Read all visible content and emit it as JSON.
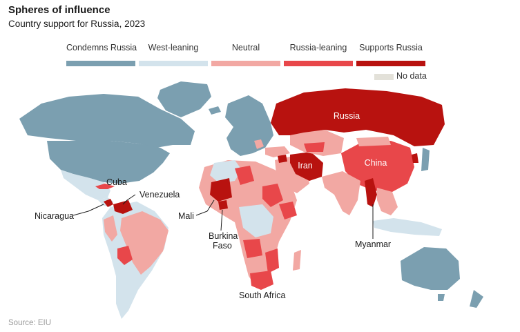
{
  "title": "Spheres of influence",
  "subtitle": "Country support for Russia, 2023",
  "source": "Source: EIU",
  "legend": [
    {
      "label": "Condemns Russia",
      "color": "#7b9fb0"
    },
    {
      "label": "West-leaning",
      "color": "#d3e3ec"
    },
    {
      "label": "Neutral",
      "color": "#f2a8a3"
    },
    {
      "label": "Russia-leaning",
      "color": "#e8474a"
    },
    {
      "label": "Supports Russia",
      "color": "#b8120f"
    }
  ],
  "no_data": {
    "label": "No data",
    "color": "#e3e1d9"
  },
  "country_labels": {
    "russia": "Russia",
    "china": "China",
    "iran": "Iran",
    "cuba": "Cuba",
    "venezuela": "Venezuela",
    "nicaragua": "Nicaragua",
    "mali": "Mali",
    "burkina_faso_1": "Burkina",
    "burkina_faso_2": "Faso",
    "myanmar": "Myanmar",
    "south_africa": "South Africa"
  },
  "country_status": {
    "russia": "Supports Russia",
    "china": "Russia-leaning",
    "iran": "Supports Russia",
    "cuba": "Russia-leaning",
    "venezuela": "Supports Russia",
    "nicaragua": "Supports Russia",
    "mali": "Supports Russia",
    "burkina_faso": "Supports Russia",
    "myanmar": "Supports Russia",
    "south_africa": "Russia-leaning"
  }
}
